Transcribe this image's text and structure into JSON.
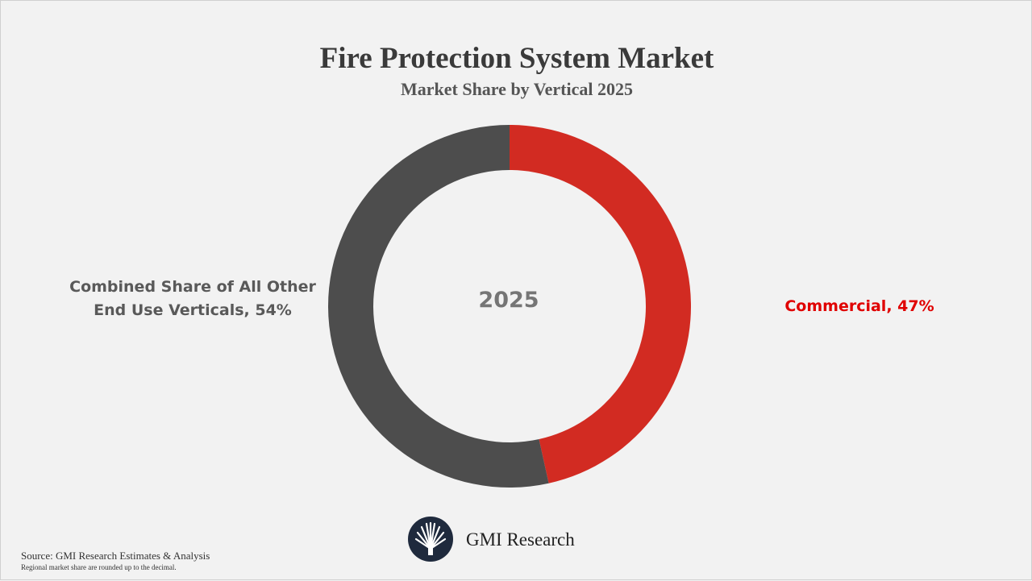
{
  "chart_data": {
    "type": "pie",
    "title": "Fire Protection System Market",
    "subtitle": "Market Share by Vertical 2025",
    "center_label": "2025",
    "start": "12 o'clock",
    "direction": "clockwise",
    "slices": [
      {
        "label": "Commercial, 47%",
        "value": 47,
        "color": "#d22b22"
      },
      {
        "label": "Combined Share of All Other End Use Verticals, 54%",
        "value": 54,
        "color": "#4d4d4d"
      }
    ]
  },
  "labels": {
    "left_line1": "Combined Share of All Other",
    "left_line2": "End Use Verticals, 54%",
    "right": "Commercial, 47%"
  },
  "logo": {
    "text": "GMI Research",
    "icon": "gmi-fan-logo-icon",
    "color": "#1f2a3d"
  },
  "footer": {
    "source": "Source: GMI Research Estimates & Analysis",
    "note": "Regional market share are rounded up to the decimal."
  }
}
